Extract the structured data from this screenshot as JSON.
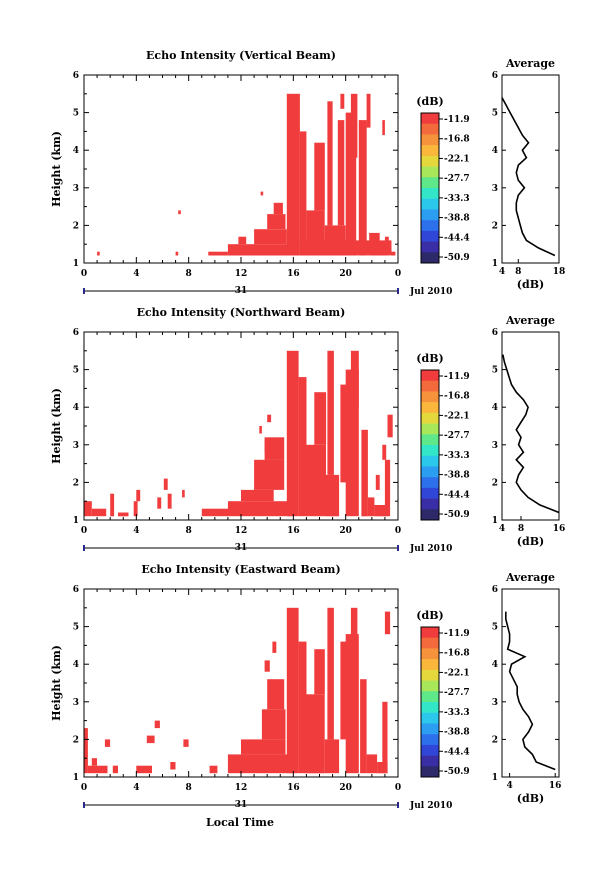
{
  "figure": {
    "date_label": "Jul 2010",
    "day_label": "31",
    "xlabel": "Local Time",
    "cbar_unit": "(dB)",
    "avg_xlabel": "(dB)",
    "avg_title": "Average"
  },
  "colormap": [
    "#f03c3c",
    "#f36a3c",
    "#f7923c",
    "#fbb63c",
    "#e4d83c",
    "#a8e65a",
    "#5fe88a",
    "#34e6c8",
    "#2cc8ec",
    "#2c9ef2",
    "#2c70ec",
    "#3046d6",
    "#3a2ea6",
    "#2e2a6a"
  ],
  "chart_data": [
    {
      "type": "heatmap",
      "title": "Echo Intensity (Vertical Beam)",
      "ylabel": "Height (km)",
      "xlim": [
        0,
        24
      ],
      "ylim": [
        1,
        6
      ],
      "xticks": [
        "0",
        "4",
        "8",
        "12",
        "16",
        "20",
        "0"
      ],
      "yticks": [
        "1",
        "2",
        "3",
        "4",
        "5",
        "6"
      ],
      "colorbar": {
        "ticks": [
          "-11.9",
          "-16.8",
          "-22.1",
          "-27.7",
          "-33.3",
          "-38.8",
          "-44.4",
          "-50.9"
        ]
      },
      "dominant_value_db": -11.9,
      "cells": [
        {
          "x": [
            1.0,
            1.2
          ],
          "y": [
            1.2,
            1.3
          ]
        },
        {
          "x": [
            7.0,
            7.2
          ],
          "y": [
            1.2,
            1.3
          ]
        },
        {
          "x": [
            7.2,
            7.4
          ],
          "y": [
            2.3,
            2.4
          ]
        },
        {
          "x": [
            9.5,
            11.0
          ],
          "y": [
            1.2,
            1.3
          ]
        },
        {
          "x": [
            11.0,
            16.0
          ],
          "y": [
            1.2,
            1.5
          ]
        },
        {
          "x": [
            11.8,
            12.4
          ],
          "y": [
            1.5,
            1.7
          ]
        },
        {
          "x": [
            13.0,
            15.5
          ],
          "y": [
            1.5,
            1.9
          ]
        },
        {
          "x": [
            14.0,
            15.4
          ],
          "y": [
            1.9,
            2.3
          ]
        },
        {
          "x": [
            14.5,
            15.2
          ],
          "y": [
            2.3,
            2.6
          ]
        },
        {
          "x": [
            13.5,
            13.7
          ],
          "y": [
            2.8,
            2.9
          ]
        },
        {
          "x": [
            15.5,
            16.5
          ],
          "y": [
            1.2,
            5.5
          ]
        },
        {
          "x": [
            16.5,
            17.0
          ],
          "y": [
            1.2,
            4.5
          ]
        },
        {
          "x": [
            16.5,
            23.5
          ],
          "y": [
            1.2,
            1.6
          ]
        },
        {
          "x": [
            17.0,
            18.4
          ],
          "y": [
            1.2,
            2.4
          ]
        },
        {
          "x": [
            17.6,
            18.4
          ],
          "y": [
            2.4,
            4.2
          ]
        },
        {
          "x": [
            18.4,
            20.0
          ],
          "y": [
            1.2,
            2.0
          ]
        },
        {
          "x": [
            18.6,
            19.0
          ],
          "y": [
            2.0,
            5.3
          ]
        },
        {
          "x": [
            19.4,
            19.9
          ],
          "y": [
            2.0,
            4.8
          ]
        },
        {
          "x": [
            20.0,
            20.8
          ],
          "y": [
            1.2,
            5.0
          ]
        },
        {
          "x": [
            20.4,
            20.9
          ],
          "y": [
            3.8,
            5.5
          ]
        },
        {
          "x": [
            21.0,
            21.6
          ],
          "y": [
            1.2,
            4.8
          ]
        },
        {
          "x": [
            21.6,
            21.9
          ],
          "y": [
            4.6,
            5.5
          ]
        },
        {
          "x": [
            19.6,
            19.9
          ],
          "y": [
            5.1,
            5.5
          ]
        },
        {
          "x": [
            21.8,
            22.6
          ],
          "y": [
            1.2,
            1.8
          ]
        },
        {
          "x": [
            22.6,
            23.2
          ],
          "y": [
            1.2,
            1.5
          ]
        },
        {
          "x": [
            23.0,
            23.3
          ],
          "y": [
            1.5,
            1.7
          ]
        },
        {
          "x": [
            23.5,
            23.8
          ],
          "y": [
            1.2,
            1.3
          ]
        },
        {
          "x": [
            22.8,
            23.0
          ],
          "y": [
            4.4,
            4.8
          ]
        }
      ],
      "average": {
        "xlim": [
          4,
          18
        ],
        "xticks": [
          "4",
          "8",
          "18"
        ],
        "height": [
          1.2,
          1.4,
          1.6,
          1.8,
          2.0,
          2.2,
          2.4,
          2.6,
          2.8,
          3.0,
          3.2,
          3.4,
          3.6,
          3.8,
          4.0,
          4.2,
          4.4,
          4.6,
          4.8,
          5.0,
          5.2,
          5.4
        ],
        "db": [
          17.0,
          13.0,
          10.0,
          9.0,
          8.5,
          8.0,
          7.5,
          7.5,
          8.0,
          9.5,
          8.0,
          7.5,
          8.0,
          10.0,
          9.0,
          10.5,
          9.0,
          8.0,
          7.0,
          6.0,
          5.0,
          4.0
        ]
      }
    },
    {
      "type": "heatmap",
      "title": "Echo Intensity (Northward Beam)",
      "ylabel": "Height (km)",
      "xlim": [
        0,
        24
      ],
      "ylim": [
        1,
        6
      ],
      "xticks": [
        "0",
        "4",
        "8",
        "12",
        "16",
        "20",
        "0"
      ],
      "yticks": [
        "1",
        "2",
        "3",
        "4",
        "5",
        "6"
      ],
      "colorbar": {
        "ticks": [
          "-11.9",
          "-16.8",
          "-22.1",
          "-27.7",
          "-33.3",
          "-38.8",
          "-44.4",
          "-50.9"
        ]
      },
      "dominant_value_db": -11.9,
      "cells": [
        {
          "x": [
            0.0,
            0.6
          ],
          "y": [
            1.1,
            1.5
          ]
        },
        {
          "x": [
            0.6,
            1.7
          ],
          "y": [
            1.1,
            1.3
          ]
        },
        {
          "x": [
            2.0,
            2.3
          ],
          "y": [
            1.1,
            1.7
          ]
        },
        {
          "x": [
            2.6,
            3.4
          ],
          "y": [
            1.1,
            1.2
          ]
        },
        {
          "x": [
            3.8,
            4.1
          ],
          "y": [
            1.1,
            1.5
          ]
        },
        {
          "x": [
            4.0,
            4.3
          ],
          "y": [
            1.5,
            1.8
          ]
        },
        {
          "x": [
            5.6,
            5.9
          ],
          "y": [
            1.3,
            1.6
          ]
        },
        {
          "x": [
            6.1,
            6.4
          ],
          "y": [
            1.8,
            2.1
          ]
        },
        {
          "x": [
            6.4,
            6.7
          ],
          "y": [
            1.3,
            1.7
          ]
        },
        {
          "x": [
            7.5,
            7.7
          ],
          "y": [
            1.6,
            1.8
          ]
        },
        {
          "x": [
            9.0,
            11.0
          ],
          "y": [
            1.1,
            1.3
          ]
        },
        {
          "x": [
            11.0,
            16.0
          ],
          "y": [
            1.1,
            1.5
          ]
        },
        {
          "x": [
            12.0,
            14.5
          ],
          "y": [
            1.5,
            1.8
          ]
        },
        {
          "x": [
            13.0,
            15.3
          ],
          "y": [
            1.8,
            2.6
          ]
        },
        {
          "x": [
            13.8,
            15.3
          ],
          "y": [
            2.6,
            3.2
          ]
        },
        {
          "x": [
            13.4,
            13.6
          ],
          "y": [
            3.3,
            3.5
          ]
        },
        {
          "x": [
            14.0,
            14.3
          ],
          "y": [
            3.6,
            3.8
          ]
        },
        {
          "x": [
            13.8,
            14.2
          ],
          "y": [
            2.8,
            3.1
          ]
        },
        {
          "x": [
            15.5,
            16.4
          ],
          "y": [
            1.1,
            5.5
          ]
        },
        {
          "x": [
            16.4,
            17.0
          ],
          "y": [
            1.1,
            4.8
          ]
        },
        {
          "x": [
            17.0,
            18.5
          ],
          "y": [
            1.1,
            3.0
          ]
        },
        {
          "x": [
            17.6,
            18.5
          ],
          "y": [
            3.0,
            4.4
          ]
        },
        {
          "x": [
            18.5,
            19.5
          ],
          "y": [
            1.1,
            2.2
          ]
        },
        {
          "x": [
            18.6,
            19.1
          ],
          "y": [
            2.2,
            5.5
          ]
        },
        {
          "x": [
            19.6,
            20.1
          ],
          "y": [
            2.0,
            4.6
          ]
        },
        {
          "x": [
            20.0,
            21.0
          ],
          "y": [
            1.1,
            5.0
          ]
        },
        {
          "x": [
            20.4,
            21.0
          ],
          "y": [
            4.0,
            5.5
          ]
        },
        {
          "x": [
            21.2,
            21.7
          ],
          "y": [
            1.1,
            3.4
          ]
        },
        {
          "x": [
            21.7,
            22.2
          ],
          "y": [
            1.1,
            1.6
          ]
        },
        {
          "x": [
            22.2,
            23.2
          ],
          "y": [
            1.1,
            1.4
          ]
        },
        {
          "x": [
            22.3,
            22.6
          ],
          "y": [
            1.8,
            2.2
          ]
        },
        {
          "x": [
            23.0,
            23.4
          ],
          "y": [
            1.1,
            2.6
          ]
        },
        {
          "x": [
            23.2,
            23.6
          ],
          "y": [
            3.2,
            3.8
          ]
        },
        {
          "x": [
            22.8,
            23.1
          ],
          "y": [
            2.6,
            3.0
          ]
        }
      ],
      "average": {
        "xlim": [
          4,
          16
        ],
        "xticks": [
          "4",
          "8",
          "16"
        ],
        "height": [
          1.2,
          1.4,
          1.6,
          1.8,
          2.0,
          2.2,
          2.4,
          2.6,
          2.8,
          3.0,
          3.2,
          3.4,
          3.6,
          3.8,
          4.0,
          4.2,
          4.4,
          4.6,
          4.8,
          5.0,
          5.2,
          5.4
        ],
        "db": [
          16.0,
          12.0,
          9.5,
          8.0,
          7.0,
          7.5,
          8.5,
          7.0,
          8.5,
          7.5,
          8.0,
          7.0,
          8.0,
          9.0,
          9.5,
          8.5,
          7.0,
          6.0,
          5.5,
          5.0,
          4.5,
          4.2
        ]
      }
    },
    {
      "type": "heatmap",
      "title": "Echo Intensity (Eastward Beam)",
      "ylabel": "Height (km)",
      "xlim": [
        0,
        24
      ],
      "ylim": [
        1,
        6
      ],
      "xticks": [
        "0",
        "4",
        "8",
        "12",
        "16",
        "20",
        "0"
      ],
      "yticks": [
        "1",
        "2",
        "3",
        "4",
        "5",
        "6"
      ],
      "colorbar": {
        "ticks": [
          "-11.9",
          "-16.8",
          "-22.1",
          "-27.7",
          "-33.3",
          "-38.8",
          "-44.4",
          "-50.9"
        ]
      },
      "dominant_value_db": -11.9,
      "cells": [
        {
          "x": [
            0.0,
            0.3
          ],
          "y": [
            1.1,
            2.3
          ]
        },
        {
          "x": [
            0.3,
            1.8
          ],
          "y": [
            1.1,
            1.3
          ]
        },
        {
          "x": [
            0.6,
            1.0
          ],
          "y": [
            1.3,
            1.5
          ]
        },
        {
          "x": [
            1.6,
            2.0
          ],
          "y": [
            1.8,
            2.0
          ]
        },
        {
          "x": [
            2.2,
            2.6
          ],
          "y": [
            1.1,
            1.3
          ]
        },
        {
          "x": [
            4.0,
            5.2
          ],
          "y": [
            1.1,
            1.3
          ]
        },
        {
          "x": [
            4.8,
            5.4
          ],
          "y": [
            1.9,
            2.1
          ]
        },
        {
          "x": [
            5.4,
            5.8
          ],
          "y": [
            2.3,
            2.5
          ]
        },
        {
          "x": [
            6.6,
            7.0
          ],
          "y": [
            1.2,
            1.4
          ]
        },
        {
          "x": [
            7.6,
            8.0
          ],
          "y": [
            1.8,
            2.0
          ]
        },
        {
          "x": [
            9.6,
            10.2
          ],
          "y": [
            1.1,
            1.3
          ]
        },
        {
          "x": [
            11.0,
            16.0
          ],
          "y": [
            1.1,
            1.6
          ]
        },
        {
          "x": [
            12.0,
            15.4
          ],
          "y": [
            1.6,
            2.0
          ]
        },
        {
          "x": [
            13.6,
            15.4
          ],
          "y": [
            2.0,
            2.8
          ]
        },
        {
          "x": [
            14.0,
            15.3
          ],
          "y": [
            2.8,
            3.6
          ]
        },
        {
          "x": [
            13.8,
            14.2
          ],
          "y": [
            3.8,
            4.1
          ]
        },
        {
          "x": [
            14.4,
            14.7
          ],
          "y": [
            4.3,
            4.6
          ]
        },
        {
          "x": [
            15.5,
            16.4
          ],
          "y": [
            1.1,
            5.5
          ]
        },
        {
          "x": [
            16.4,
            17.0
          ],
          "y": [
            1.1,
            4.6
          ]
        },
        {
          "x": [
            17.0,
            18.4
          ],
          "y": [
            1.1,
            3.2
          ]
        },
        {
          "x": [
            17.6,
            18.4
          ],
          "y": [
            3.2,
            4.4
          ]
        },
        {
          "x": [
            18.4,
            19.5
          ],
          "y": [
            1.1,
            2.0
          ]
        },
        {
          "x": [
            18.6,
            19.1
          ],
          "y": [
            2.0,
            5.5
          ]
        },
        {
          "x": [
            19.6,
            20.1
          ],
          "y": [
            2.0,
            4.6
          ]
        },
        {
          "x": [
            20.0,
            21.0
          ],
          "y": [
            1.1,
            4.8
          ]
        },
        {
          "x": [
            20.4,
            20.9
          ],
          "y": [
            4.0,
            5.5
          ]
        },
        {
          "x": [
            21.1,
            21.6
          ],
          "y": [
            1.1,
            3.6
          ]
        },
        {
          "x": [
            21.6,
            22.4
          ],
          "y": [
            1.1,
            1.6
          ]
        },
        {
          "x": [
            22.4,
            23.2
          ],
          "y": [
            1.1,
            1.4
          ]
        },
        {
          "x": [
            22.8,
            23.2
          ],
          "y": [
            1.4,
            3.0
          ]
        },
        {
          "x": [
            23.0,
            23.4
          ],
          "y": [
            4.8,
            5.4
          ]
        }
      ],
      "average": {
        "xlim": [
          2,
          17
        ],
        "xticks": [
          "4",
          "16"
        ],
        "height": [
          1.2,
          1.4,
          1.6,
          1.8,
          2.0,
          2.2,
          2.4,
          2.6,
          2.8,
          3.0,
          3.2,
          3.4,
          3.6,
          3.8,
          4.0,
          4.2,
          4.4,
          4.6,
          4.8,
          5.0,
          5.2,
          5.4
        ],
        "db": [
          16.0,
          11.0,
          10.0,
          8.0,
          7.5,
          9.0,
          10.0,
          9.0,
          7.5,
          6.5,
          6.0,
          6.0,
          5.0,
          4.0,
          4.5,
          8.0,
          3.5,
          4.0,
          4.0,
          3.5,
          3.0,
          3.0
        ]
      }
    }
  ]
}
